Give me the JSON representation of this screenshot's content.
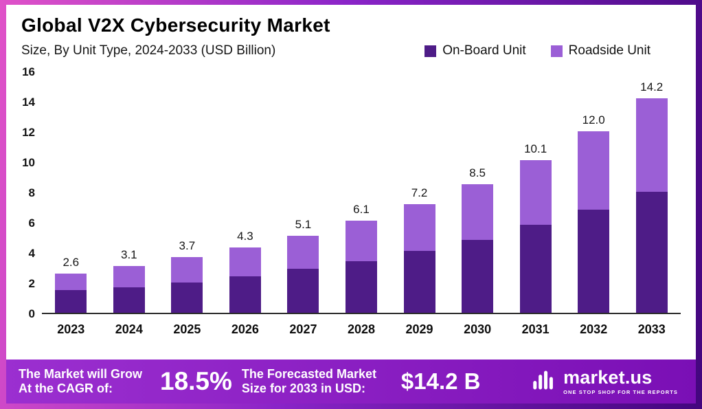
{
  "header": {
    "title": "Global V2X Cybersecurity Market",
    "subtitle": "Size, By Unit Type, 2024-2033 (USD Billion)"
  },
  "chart_data": {
    "type": "bar",
    "stacked": true,
    "title": "Global V2X Cybersecurity Market Size, By Unit Type, 2024-2033 (USD Billion)",
    "categories": [
      "2023",
      "2024",
      "2025",
      "2026",
      "2027",
      "2028",
      "2029",
      "2030",
      "2031",
      "2032",
      "2033"
    ],
    "series": [
      {
        "name": "On-Board Unit",
        "color": "#4e1c87",
        "values": [
          1.5,
          1.7,
          2.0,
          2.4,
          2.9,
          3.4,
          4.1,
          4.8,
          5.8,
          6.8,
          8.0
        ]
      },
      {
        "name": "Roadside Unit",
        "color": "#9b5fd6",
        "values": [
          1.1,
          1.4,
          1.7,
          1.9,
          2.2,
          2.7,
          3.1,
          3.7,
          4.3,
          5.2,
          6.2
        ]
      }
    ],
    "totals": [
      2.6,
      3.1,
      3.7,
      4.3,
      5.1,
      6.1,
      7.2,
      8.5,
      10.1,
      12.0,
      14.2
    ],
    "total_labels": [
      "2.6",
      "3.1",
      "3.7",
      "4.3",
      "5.1",
      "6.1",
      "7.2",
      "8.5",
      "10.1",
      "12.0",
      "14.2"
    ],
    "ylim": [
      0,
      16
    ],
    "ytick_step": 2,
    "yticks": [
      "0",
      "2",
      "4",
      "6",
      "8",
      "10",
      "12",
      "14",
      "16"
    ],
    "xlabel": "",
    "ylabel": "",
    "grid": false,
    "legend_position": "top-right"
  },
  "footer": {
    "cagr_label": "The Market will Grow At the CAGR of:",
    "cagr_value": "18.5%",
    "forecast_label": "The Forecasted Market Size for 2033 in USD:",
    "forecast_value": "$14.2 B",
    "brand": "market.us",
    "brand_tagline": "ONE STOP SHOP FOR THE REPORTS"
  },
  "colors": {
    "onboard": "#4e1c87",
    "roadside": "#9b5fd6",
    "banner_gradient_start": "#9b2fd0",
    "banner_gradient_end": "#7a0fb5",
    "frame_gradient_start": "#e052c8",
    "frame_gradient_mid": "#8a24c8",
    "frame_gradient_end": "#43067e"
  }
}
